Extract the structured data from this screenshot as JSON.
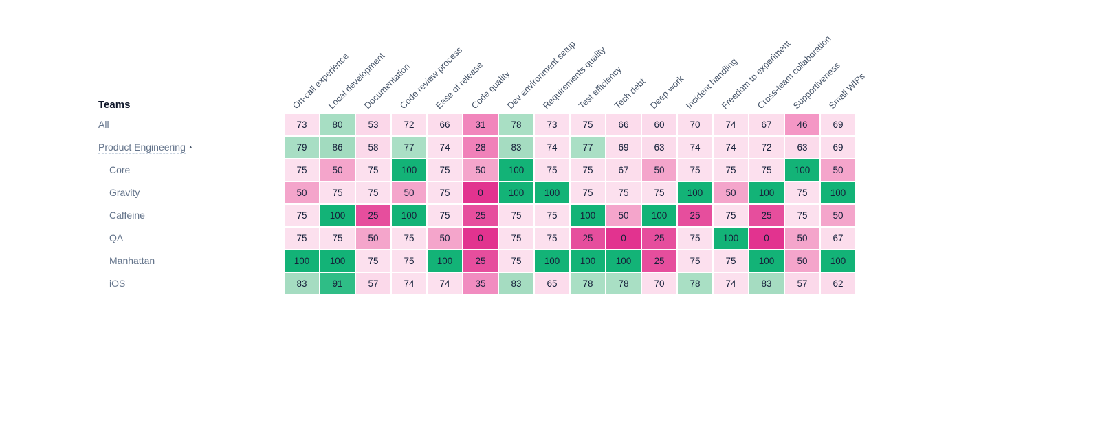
{
  "page": {
    "background": "#ffffff"
  },
  "icons": {
    "sort_ascending": "▲"
  },
  "chart_data": {
    "type": "heatmap",
    "row_axis_label": "Teams",
    "columns": [
      "On-call experience",
      "Local development",
      "Documentation",
      "Code review process",
      "Ease of release",
      "Code quality",
      "Dev environment setup",
      "Requirements quality",
      "Test efficiency",
      "Tech debt",
      "Deep work",
      "Incident handling",
      "Freedom to experiment",
      "Cross-team collaboration",
      "Supportiveness",
      "Small WIPs"
    ],
    "rows": [
      {
        "team": "All",
        "indent": 0,
        "underline": false,
        "sort_caret": false,
        "values": [
          73,
          80,
          53,
          72,
          66,
          31,
          78,
          73,
          75,
          66,
          60,
          70,
          74,
          67,
          46,
          69
        ]
      },
      {
        "team": "Product Engineering",
        "indent": 0,
        "underline": true,
        "sort_caret": true,
        "values": [
          79,
          86,
          58,
          77,
          74,
          28,
          83,
          74,
          77,
          69,
          63,
          74,
          74,
          72,
          63,
          69
        ]
      },
      {
        "team": "Core",
        "indent": 1,
        "underline": false,
        "sort_caret": false,
        "values": [
          75,
          50,
          75,
          100,
          75,
          50,
          100,
          75,
          75,
          67,
          50,
          75,
          75,
          75,
          100,
          50
        ]
      },
      {
        "team": "Gravity",
        "indent": 1,
        "underline": false,
        "sort_caret": false,
        "values": [
          50,
          75,
          75,
          50,
          75,
          0,
          100,
          100,
          75,
          75,
          75,
          100,
          50,
          100,
          75,
          100
        ]
      },
      {
        "team": "Caffeine",
        "indent": 1,
        "underline": false,
        "sort_caret": false,
        "values": [
          75,
          100,
          25,
          100,
          75,
          25,
          75,
          75,
          100,
          50,
          100,
          25,
          75,
          25,
          75,
          50
        ]
      },
      {
        "team": "QA",
        "indent": 1,
        "underline": false,
        "sort_caret": false,
        "values": [
          75,
          75,
          50,
          75,
          50,
          0,
          75,
          75,
          25,
          0,
          25,
          75,
          100,
          0,
          50,
          67
        ]
      },
      {
        "team": "Manhattan",
        "indent": 1,
        "underline": false,
        "sort_caret": false,
        "values": [
          100,
          100,
          75,
          75,
          100,
          25,
          75,
          100,
          100,
          100,
          25,
          75,
          75,
          100,
          50,
          100
        ]
      },
      {
        "team": "iOS",
        "indent": 1,
        "underline": false,
        "sort_caret": false,
        "values": [
          83,
          91,
          57,
          74,
          74,
          35,
          83,
          65,
          78,
          78,
          70,
          78,
          74,
          83,
          57,
          62
        ]
      }
    ],
    "value_range": [
      0,
      100
    ],
    "legend_position": "none",
    "grid": false,
    "cell_text_color": "#16213a",
    "color_scale": {
      "stops": [
        [
          0,
          "#E2338F"
        ],
        [
          25,
          "#E64E9D"
        ],
        [
          27,
          "#F07FB8"
        ],
        [
          35,
          "#F18CC0"
        ],
        [
          45,
          "#F494C3"
        ],
        [
          50,
          "#F4A5CB"
        ],
        [
          53,
          "#FBD7E9"
        ],
        [
          75,
          "#FCE0EE"
        ],
        [
          77,
          "#AADFC5"
        ],
        [
          86,
          "#A2DBBF"
        ],
        [
          88,
          "#5ECD9E"
        ],
        [
          91,
          "#2FBD86"
        ],
        [
          100,
          "#13B377"
        ]
      ]
    }
  }
}
